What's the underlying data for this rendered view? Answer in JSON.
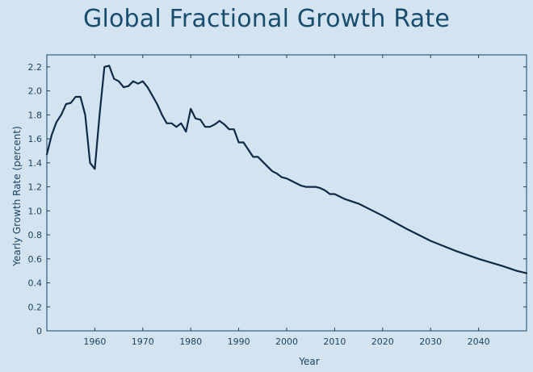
{
  "slide": {
    "title": "Global Fractional Growth Rate"
  },
  "chart_data": {
    "type": "line",
    "title": "Global Fractional Growth Rate",
    "xlabel": "Year",
    "ylabel": "Yearly Growth Rate (percent)",
    "xlim": [
      1950,
      2050
    ],
    "ylim": [
      0,
      2.3
    ],
    "xticks": [
      1960,
      1970,
      1980,
      1990,
      2000,
      2010,
      2020,
      2030,
      2040
    ],
    "yticks": [
      0,
      0.2,
      0.4,
      0.6,
      0.8,
      1.0,
      1.2,
      1.4,
      1.6,
      1.8,
      2.0,
      2.2
    ],
    "ytick_labels": [
      "0",
      "0.2",
      "0.4",
      "0.6",
      "0.8",
      "1.0",
      "1.2",
      "1.4",
      "1.6",
      "1.8",
      "2.0",
      "2.2"
    ],
    "grid": false,
    "line_color": "#0e2a47",
    "series": [
      {
        "x": [
          1950,
          1951,
          1952,
          1953,
          1954,
          1955,
          1956,
          1957,
          1958,
          1959,
          1960,
          1961,
          1962,
          1963,
          1964,
          1965,
          1966,
          1967,
          1968,
          1969,
          1970,
          1971,
          1972,
          1973,
          1974,
          1975,
          1976,
          1977,
          1978,
          1979,
          1980,
          1981,
          1982,
          1983,
          1984,
          1985,
          1986,
          1987,
          1988,
          1989,
          1990,
          1991,
          1992,
          1993,
          1994,
          1995,
          1996,
          1997,
          1998,
          1999,
          2000,
          2001,
          2002,
          2003,
          2004,
          2005,
          2006,
          2007,
          2008,
          2009,
          2010,
          2012,
          2015,
          2020,
          2025,
          2030,
          2035,
          2040,
          2045,
          2048,
          2050
        ],
        "values": [
          1.47,
          1.63,
          1.74,
          1.8,
          1.89,
          1.9,
          1.95,
          1.95,
          1.8,
          1.4,
          1.35,
          1.8,
          2.2,
          2.21,
          2.1,
          2.08,
          2.03,
          2.04,
          2.08,
          2.06,
          2.08,
          2.03,
          1.96,
          1.89,
          1.8,
          1.73,
          1.73,
          1.7,
          1.73,
          1.66,
          1.85,
          1.77,
          1.76,
          1.7,
          1.7,
          1.72,
          1.75,
          1.72,
          1.68,
          1.68,
          1.57,
          1.57,
          1.51,
          1.45,
          1.45,
          1.41,
          1.37,
          1.33,
          1.31,
          1.28,
          1.27,
          1.25,
          1.23,
          1.21,
          1.2,
          1.2,
          1.2,
          1.19,
          1.17,
          1.14,
          1.14,
          1.1,
          1.06,
          0.96,
          0.85,
          0.75,
          0.67,
          0.6,
          0.54,
          0.5,
          0.48
        ]
      }
    ]
  }
}
